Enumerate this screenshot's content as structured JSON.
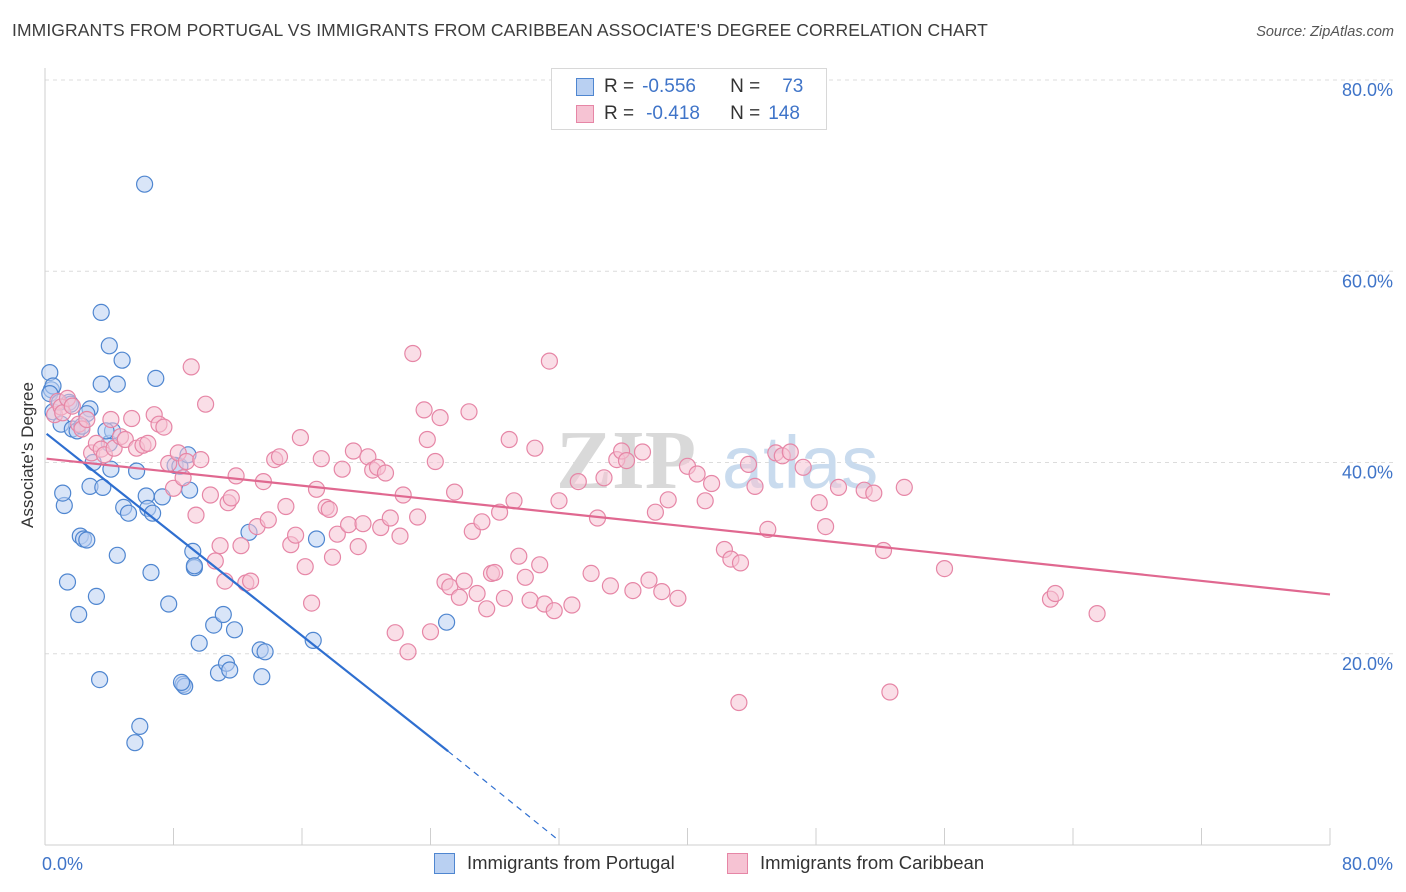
{
  "header": {
    "title": "IMMIGRANTS FROM PORTUGAL VS IMMIGRANTS FROM CARIBBEAN ASSOCIATE'S DEGREE CORRELATION CHART",
    "source": "Source: ZipAtlas.com"
  },
  "legend": {
    "r_label": "R =",
    "n_label": "N =",
    "rows": [
      {
        "r": "-0.556",
        "n": "73"
      },
      {
        "r": "-0.418",
        "n": "148"
      }
    ]
  },
  "watermark": {
    "part1": "ZIP",
    "part2": "atlas"
  },
  "colors": {
    "blue_fill": "#b9d0f2",
    "blue_stroke": "#4f86d0",
    "blue_line": "#2f6fd0",
    "pink_fill": "#f6c3d3",
    "pink_stroke": "#e686a6",
    "pink_line": "#e06890",
    "tick_label": "#3f74c8"
  },
  "chart_data": {
    "type": "scatter",
    "title": "IMMIGRANTS FROM PORTUGAL VS IMMIGRANTS FROM CARIBBEAN ASSOCIATE'S DEGREE CORRELATION CHART",
    "xlabel": "",
    "ylabel": "Associate's Degree",
    "xlim": [
      0,
      80
    ],
    "ylim": [
      0,
      80
    ],
    "x_tick_labels": [
      "0.0%",
      "80.0%"
    ],
    "y_ticks": [
      20,
      40,
      60,
      80
    ],
    "y_tick_labels": [
      "20.0%",
      "40.0%",
      "60.0%",
      "80.0%"
    ],
    "grid": "horizontal dashed",
    "legend_position": "top-center",
    "series": [
      {
        "name": "Immigrants from Portugal",
        "color": "blue",
        "r": -0.556,
        "n": 73,
        "trend": {
          "x0": 0.1,
          "y0": 43.0,
          "x1": 25.1,
          "y1": 9.8,
          "dash_to_x": 31.9,
          "dash_to_y": 0.6
        },
        "points": [
          [
            0.3,
            49.4
          ],
          [
            0.4,
            47.6
          ],
          [
            0.5,
            48.0
          ],
          [
            0.3,
            47.2
          ],
          [
            0.5,
            45.3
          ],
          [
            0.9,
            46.3
          ],
          [
            1.0,
            44.0
          ],
          [
            1.5,
            46.3
          ],
          [
            1.7,
            43.5
          ],
          [
            2.0,
            43.3
          ],
          [
            2.8,
            45.6
          ],
          [
            2.6,
            45.1
          ],
          [
            3.5,
            48.2
          ],
          [
            4.5,
            48.2
          ],
          [
            4.8,
            50.7
          ],
          [
            4.0,
            52.2
          ],
          [
            3.5,
            55.7
          ],
          [
            6.2,
            69.1
          ],
          [
            6.9,
            48.8
          ],
          [
            1.6,
            46.1
          ],
          [
            1.2,
            35.5
          ],
          [
            1.1,
            36.8
          ],
          [
            1.4,
            27.5
          ],
          [
            2.1,
            24.1
          ],
          [
            2.2,
            32.3
          ],
          [
            2.4,
            32.0
          ],
          [
            2.6,
            31.9
          ],
          [
            2.3,
            43.8
          ],
          [
            2.8,
            37.5
          ],
          [
            3.0,
            40.0
          ],
          [
            3.2,
            26.0
          ],
          [
            3.4,
            17.3
          ],
          [
            3.6,
            37.4
          ],
          [
            4.0,
            42.0
          ],
          [
            4.1,
            39.3
          ],
          [
            4.2,
            43.3
          ],
          [
            4.5,
            30.3
          ],
          [
            4.9,
            35.3
          ],
          [
            5.2,
            34.7
          ],
          [
            5.7,
            39.1
          ],
          [
            6.3,
            36.5
          ],
          [
            6.4,
            35.2
          ],
          [
            6.6,
            28.5
          ],
          [
            6.7,
            34.7
          ],
          [
            7.3,
            36.4
          ],
          [
            7.7,
            25.2
          ],
          [
            8.1,
            39.7
          ],
          [
            8.4,
            39.6
          ],
          [
            8.6,
            16.8
          ],
          [
            8.7,
            16.6
          ],
          [
            8.5,
            17.0
          ],
          [
            8.9,
            40.8
          ],
          [
            9.0,
            37.1
          ],
          [
            9.2,
            30.7
          ],
          [
            9.3,
            29.0
          ],
          [
            9.6,
            21.1
          ],
          [
            10.5,
            23.0
          ],
          [
            10.8,
            18.0
          ],
          [
            11.1,
            24.1
          ],
          [
            11.3,
            19.0
          ],
          [
            11.5,
            18.3
          ],
          [
            11.8,
            22.5
          ],
          [
            12.7,
            32.7
          ],
          [
            13.4,
            20.4
          ],
          [
            13.5,
            17.6
          ],
          [
            13.7,
            20.2
          ],
          [
            16.7,
            21.4
          ],
          [
            16.9,
            32.0
          ],
          [
            25.0,
            23.3
          ],
          [
            5.9,
            12.4
          ],
          [
            5.6,
            10.7
          ],
          [
            9.3,
            29.2
          ],
          [
            3.8,
            43.3
          ]
        ]
      },
      {
        "name": "Immigrants from Caribbean",
        "color": "pink",
        "r": -0.418,
        "n": 148,
        "trend": {
          "x0": 0.1,
          "y0": 40.4,
          "x1": 80.0,
          "y1": 26.2
        },
        "points": [
          [
            0.6,
            45.0
          ],
          [
            0.8,
            46.4
          ],
          [
            1.0,
            45.8
          ],
          [
            1.1,
            45.2
          ],
          [
            1.4,
            46.7
          ],
          [
            1.7,
            45.9
          ],
          [
            2.1,
            44.0
          ],
          [
            2.3,
            43.5
          ],
          [
            2.6,
            44.5
          ],
          [
            2.9,
            41.0
          ],
          [
            3.2,
            42.0
          ],
          [
            3.5,
            41.4
          ],
          [
            3.7,
            40.8
          ],
          [
            4.1,
            44.5
          ],
          [
            4.3,
            41.5
          ],
          [
            4.7,
            42.7
          ],
          [
            5.0,
            42.4
          ],
          [
            5.4,
            44.6
          ],
          [
            5.7,
            41.5
          ],
          [
            6.1,
            41.8
          ],
          [
            6.4,
            42.0
          ],
          [
            6.8,
            45.0
          ],
          [
            7.1,
            44.0
          ],
          [
            7.4,
            43.7
          ],
          [
            7.7,
            39.9
          ],
          [
            8.0,
            37.3
          ],
          [
            8.3,
            41.0
          ],
          [
            8.6,
            38.4
          ],
          [
            8.8,
            40.1
          ],
          [
            9.1,
            50.0
          ],
          [
            9.4,
            34.5
          ],
          [
            9.7,
            40.3
          ],
          [
            10.0,
            46.1
          ],
          [
            10.3,
            36.6
          ],
          [
            10.6,
            29.7
          ],
          [
            10.9,
            31.3
          ],
          [
            11.2,
            27.6
          ],
          [
            11.4,
            35.8
          ],
          [
            11.6,
            36.3
          ],
          [
            11.9,
            38.6
          ],
          [
            12.2,
            31.3
          ],
          [
            12.5,
            27.4
          ],
          [
            12.8,
            27.6
          ],
          [
            13.2,
            33.3
          ],
          [
            13.6,
            38.0
          ],
          [
            13.9,
            34.0
          ],
          [
            14.3,
            40.3
          ],
          [
            14.6,
            40.6
          ],
          [
            15.0,
            35.4
          ],
          [
            15.3,
            31.4
          ],
          [
            15.6,
            32.4
          ],
          [
            15.9,
            42.6
          ],
          [
            16.2,
            29.1
          ],
          [
            16.6,
            25.3
          ],
          [
            16.9,
            37.2
          ],
          [
            17.2,
            40.4
          ],
          [
            17.5,
            35.3
          ],
          [
            17.7,
            35.1
          ],
          [
            17.9,
            30.1
          ],
          [
            18.2,
            32.5
          ],
          [
            18.5,
            39.3
          ],
          [
            18.9,
            33.5
          ],
          [
            19.2,
            41.2
          ],
          [
            19.5,
            31.2
          ],
          [
            19.8,
            33.6
          ],
          [
            20.1,
            40.6
          ],
          [
            20.4,
            39.2
          ],
          [
            20.7,
            39.5
          ],
          [
            20.9,
            33.2
          ],
          [
            21.2,
            38.9
          ],
          [
            21.5,
            34.2
          ],
          [
            21.8,
            22.2
          ],
          [
            22.1,
            32.3
          ],
          [
            22.3,
            36.6
          ],
          [
            22.6,
            20.2
          ],
          [
            22.9,
            51.4
          ],
          [
            23.2,
            34.3
          ],
          [
            23.6,
            45.5
          ],
          [
            23.8,
            42.4
          ],
          [
            24.0,
            22.3
          ],
          [
            24.3,
            40.1
          ],
          [
            24.6,
            44.7
          ],
          [
            24.9,
            27.5
          ],
          [
            25.2,
            27.0
          ],
          [
            25.5,
            36.9
          ],
          [
            25.8,
            25.9
          ],
          [
            26.1,
            27.6
          ],
          [
            26.4,
            45.3
          ],
          [
            26.6,
            32.8
          ],
          [
            26.9,
            26.3
          ],
          [
            27.2,
            33.8
          ],
          [
            27.5,
            24.7
          ],
          [
            27.8,
            28.4
          ],
          [
            28.0,
            28.5
          ],
          [
            28.3,
            34.8
          ],
          [
            28.6,
            25.8
          ],
          [
            28.9,
            42.4
          ],
          [
            29.2,
            36.0
          ],
          [
            29.5,
            30.2
          ],
          [
            29.9,
            28.0
          ],
          [
            30.2,
            25.6
          ],
          [
            30.5,
            41.5
          ],
          [
            30.8,
            29.3
          ],
          [
            31.1,
            25.2
          ],
          [
            31.4,
            50.6
          ],
          [
            31.7,
            24.5
          ],
          [
            32.0,
            36.0
          ],
          [
            32.8,
            25.1
          ],
          [
            33.2,
            38.0
          ],
          [
            34.0,
            28.4
          ],
          [
            34.4,
            34.2
          ],
          [
            34.8,
            38.4
          ],
          [
            35.2,
            27.1
          ],
          [
            35.6,
            40.3
          ],
          [
            35.9,
            41.2
          ],
          [
            36.2,
            40.2
          ],
          [
            36.6,
            26.6
          ],
          [
            37.2,
            41.1
          ],
          [
            37.6,
            27.7
          ],
          [
            38.0,
            34.8
          ],
          [
            38.4,
            26.5
          ],
          [
            38.8,
            36.1
          ],
          [
            39.4,
            25.8
          ],
          [
            40.0,
            39.6
          ],
          [
            40.6,
            38.8
          ],
          [
            41.1,
            36.0
          ],
          [
            41.5,
            37.8
          ],
          [
            42.3,
            30.9
          ],
          [
            42.7,
            29.9
          ],
          [
            43.3,
            29.5
          ],
          [
            43.8,
            39.8
          ],
          [
            44.2,
            37.5
          ],
          [
            45.0,
            33.0
          ],
          [
            45.5,
            41.0
          ],
          [
            45.9,
            40.7
          ],
          [
            46.4,
            41.1
          ],
          [
            47.2,
            39.5
          ],
          [
            48.2,
            35.8
          ],
          [
            48.6,
            33.3
          ],
          [
            49.4,
            37.4
          ],
          [
            51.0,
            37.1
          ],
          [
            51.6,
            36.8
          ],
          [
            52.2,
            30.8
          ],
          [
            52.6,
            16.0
          ],
          [
            53.5,
            37.4
          ],
          [
            43.2,
            14.9
          ],
          [
            56.0,
            28.9
          ],
          [
            62.6,
            25.7
          ],
          [
            62.9,
            26.3
          ],
          [
            65.5,
            24.2
          ]
        ]
      }
    ]
  },
  "bottom_legend": {
    "items": [
      {
        "label": "Immigrants from Portugal"
      },
      {
        "label": "Immigrants from Caribbean"
      }
    ]
  }
}
